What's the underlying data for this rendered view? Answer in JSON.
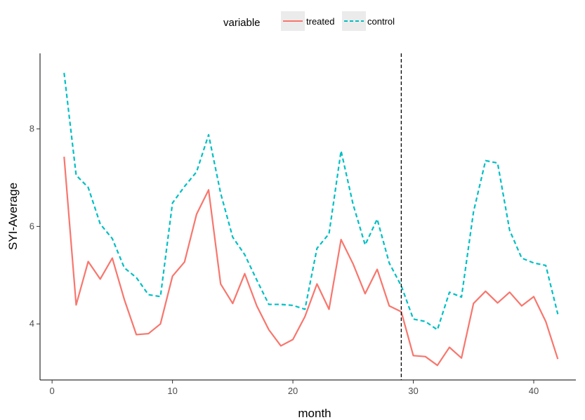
{
  "chart_data": {
    "type": "line",
    "xlabel": "month",
    "ylabel": "SYI-Average",
    "xlim": [
      -1.0,
      43.5
    ],
    "ylim": [
      2.85,
      9.55
    ],
    "xticks": [
      0,
      10,
      20,
      30,
      40
    ],
    "yticks": [
      4,
      6,
      8
    ],
    "grid": false,
    "legend": {
      "title": "variable",
      "position": "top"
    },
    "vline": {
      "x": 29,
      "style": "dashed",
      "color": "#000000"
    },
    "x": [
      1,
      2,
      3,
      4,
      5,
      6,
      7,
      8,
      9,
      10,
      11,
      12,
      13,
      14,
      15,
      16,
      17,
      18,
      19,
      20,
      21,
      22,
      23,
      24,
      25,
      26,
      27,
      28,
      29,
      30,
      31,
      32,
      33,
      34,
      35,
      36,
      37,
      38,
      39,
      40,
      41,
      42
    ],
    "series": [
      {
        "name": "treated",
        "color": "#F8766D",
        "dash": "solid",
        "values": [
          7.43,
          4.39,
          5.28,
          4.92,
          5.35,
          4.5,
          3.78,
          3.8,
          4.0,
          4.98,
          5.27,
          6.25,
          6.75,
          4.82,
          4.42,
          5.03,
          4.37,
          3.88,
          3.55,
          3.68,
          4.15,
          4.82,
          4.3,
          5.73,
          5.23,
          4.62,
          5.12,
          4.37,
          4.25,
          3.35,
          3.33,
          3.15,
          3.52,
          3.3,
          4.42,
          4.67,
          4.43,
          4.65,
          4.37,
          4.56,
          4.05,
          3.28
        ]
      },
      {
        "name": "control",
        "color": "#00BFC4",
        "dash": "dashed",
        "values": [
          9.15,
          7.05,
          6.8,
          6.05,
          5.75,
          5.15,
          4.95,
          4.6,
          4.56,
          6.48,
          6.82,
          7.12,
          7.88,
          6.68,
          5.78,
          5.42,
          4.9,
          4.4,
          4.4,
          4.38,
          4.3,
          5.55,
          5.85,
          7.55,
          6.45,
          5.62,
          6.15,
          5.25,
          4.78,
          4.1,
          4.05,
          3.88,
          4.65,
          4.55,
          6.3,
          7.35,
          7.3,
          5.92,
          5.35,
          5.25,
          5.2,
          4.2
        ]
      }
    ]
  }
}
